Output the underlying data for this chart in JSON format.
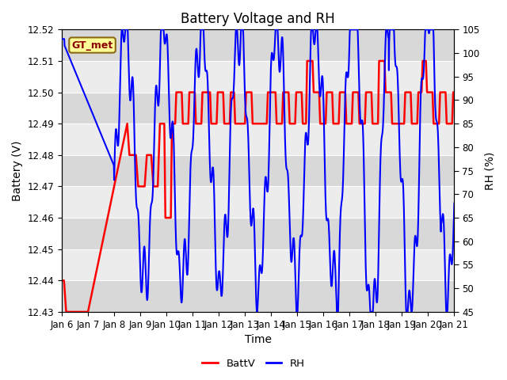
{
  "title": "Battery Voltage and RH",
  "xlabel": "Time",
  "ylabel_left": "Battery (V)",
  "ylabel_right": "RH (%)",
  "annotation": "GT_met",
  "legend": [
    "BattV",
    "RH"
  ],
  "legend_colors": [
    "#FF0000",
    "#0000FF"
  ],
  "ylim_left": [
    12.43,
    12.52
  ],
  "ylim_right": [
    45,
    105
  ],
  "yticks_left": [
    12.43,
    12.44,
    12.45,
    12.46,
    12.47,
    12.48,
    12.49,
    12.5,
    12.51,
    12.52
  ],
  "yticks_right": [
    45,
    50,
    55,
    60,
    65,
    70,
    75,
    80,
    85,
    90,
    95,
    100,
    105
  ],
  "background_color": "#FFFFFF",
  "plot_bg_color": "#E0E0E0",
  "band_color_light": "#ECECEC",
  "band_color_dark": "#D8D8D8",
  "title_fontsize": 12,
  "axis_label_fontsize": 10,
  "tick_fontsize": 8.5
}
